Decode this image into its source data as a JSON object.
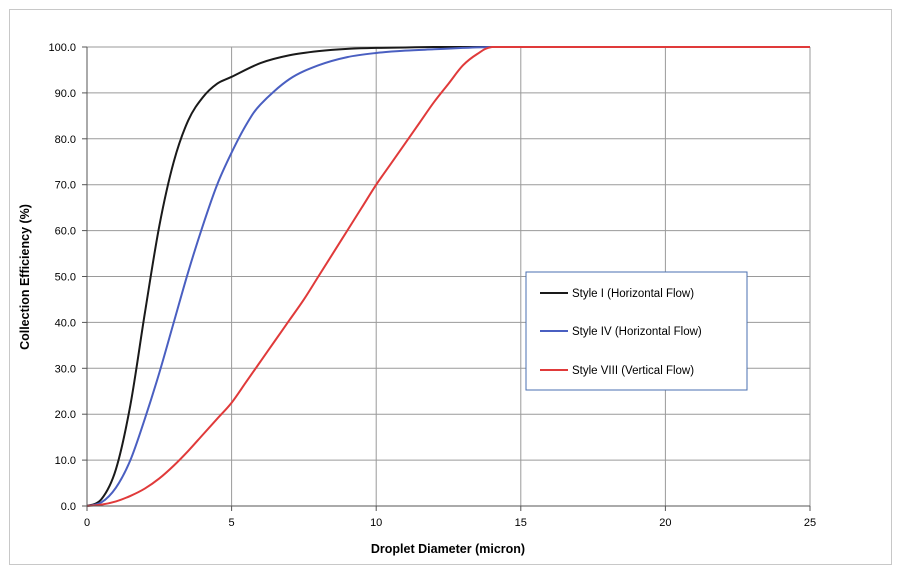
{
  "chart_data": {
    "type": "line",
    "xlabel": "Droplet Diameter (micron)",
    "ylabel": "Collection Efficiency (%)",
    "xlim": [
      0,
      25
    ],
    "ylim": [
      0,
      100
    ],
    "x_ticks": [
      0,
      5,
      10,
      15,
      20,
      25
    ],
    "y_ticks": [
      0,
      10,
      20,
      30,
      40,
      50,
      60,
      70,
      80,
      90,
      100
    ],
    "x_tick_labels": [
      "0",
      "5",
      "10",
      "15",
      "20",
      "25"
    ],
    "y_tick_labels": [
      "0.0",
      "10.0",
      "20.0",
      "30.0",
      "40.0",
      "50.0",
      "60.0",
      "70.0",
      "80.0",
      "90.0",
      "100.0"
    ],
    "grid": true,
    "legend_position": "right-center",
    "series": [
      {
        "name": "Style I (Horizontal Flow)",
        "color": "#1a1a1a",
        "x": [
          0,
          0.5,
          1,
          1.5,
          2,
          2.5,
          3,
          3.5,
          4,
          4.5,
          5,
          6,
          7,
          8,
          9,
          10,
          11,
          12,
          13,
          14,
          15,
          20,
          25
        ],
        "y": [
          0,
          1.5,
          8,
          22,
          42,
          61,
          75,
          84,
          89,
          92,
          93.5,
          96.5,
          98.2,
          99.1,
          99.6,
          99.8,
          99.9,
          100,
          100,
          100,
          100,
          100,
          100
        ]
      },
      {
        "name": "Style IV (Horizontal Flow)",
        "color": "#4a5fc1",
        "x": [
          0,
          0.5,
          1,
          1.5,
          2,
          2.5,
          3,
          3.5,
          4,
          4.5,
          5,
          5.5,
          6,
          7,
          8,
          9,
          10,
          11,
          12,
          13,
          14,
          15,
          20,
          25
        ],
        "y": [
          0,
          0.8,
          4,
          10,
          19,
          29,
          40,
          51,
          61,
          70,
          77,
          83,
          87.5,
          93,
          96,
          97.8,
          98.7,
          99.2,
          99.5,
          99.8,
          100,
          100,
          100,
          100
        ]
      },
      {
        "name": "Style VIII (Vertical Flow)",
        "color": "#e03a3a",
        "x": [
          0,
          0.5,
          1,
          1.5,
          2,
          2.5,
          3,
          3.5,
          4,
          4.5,
          5,
          5.5,
          6,
          6.5,
          7,
          7.5,
          8,
          8.5,
          9,
          9.5,
          10,
          10.5,
          11,
          11.5,
          12,
          12.5,
          13,
          13.5,
          14,
          15,
          20,
          25
        ],
        "y": [
          0,
          0.3,
          1,
          2.2,
          3.8,
          6,
          8.8,
          12,
          15.5,
          19,
          22.5,
          27,
          31.5,
          36,
          40.5,
          45,
          50,
          55,
          60,
          65,
          70,
          74.5,
          79,
          83.5,
          88,
          92,
          96,
          98.5,
          100,
          100,
          100,
          100
        ]
      }
    ]
  }
}
